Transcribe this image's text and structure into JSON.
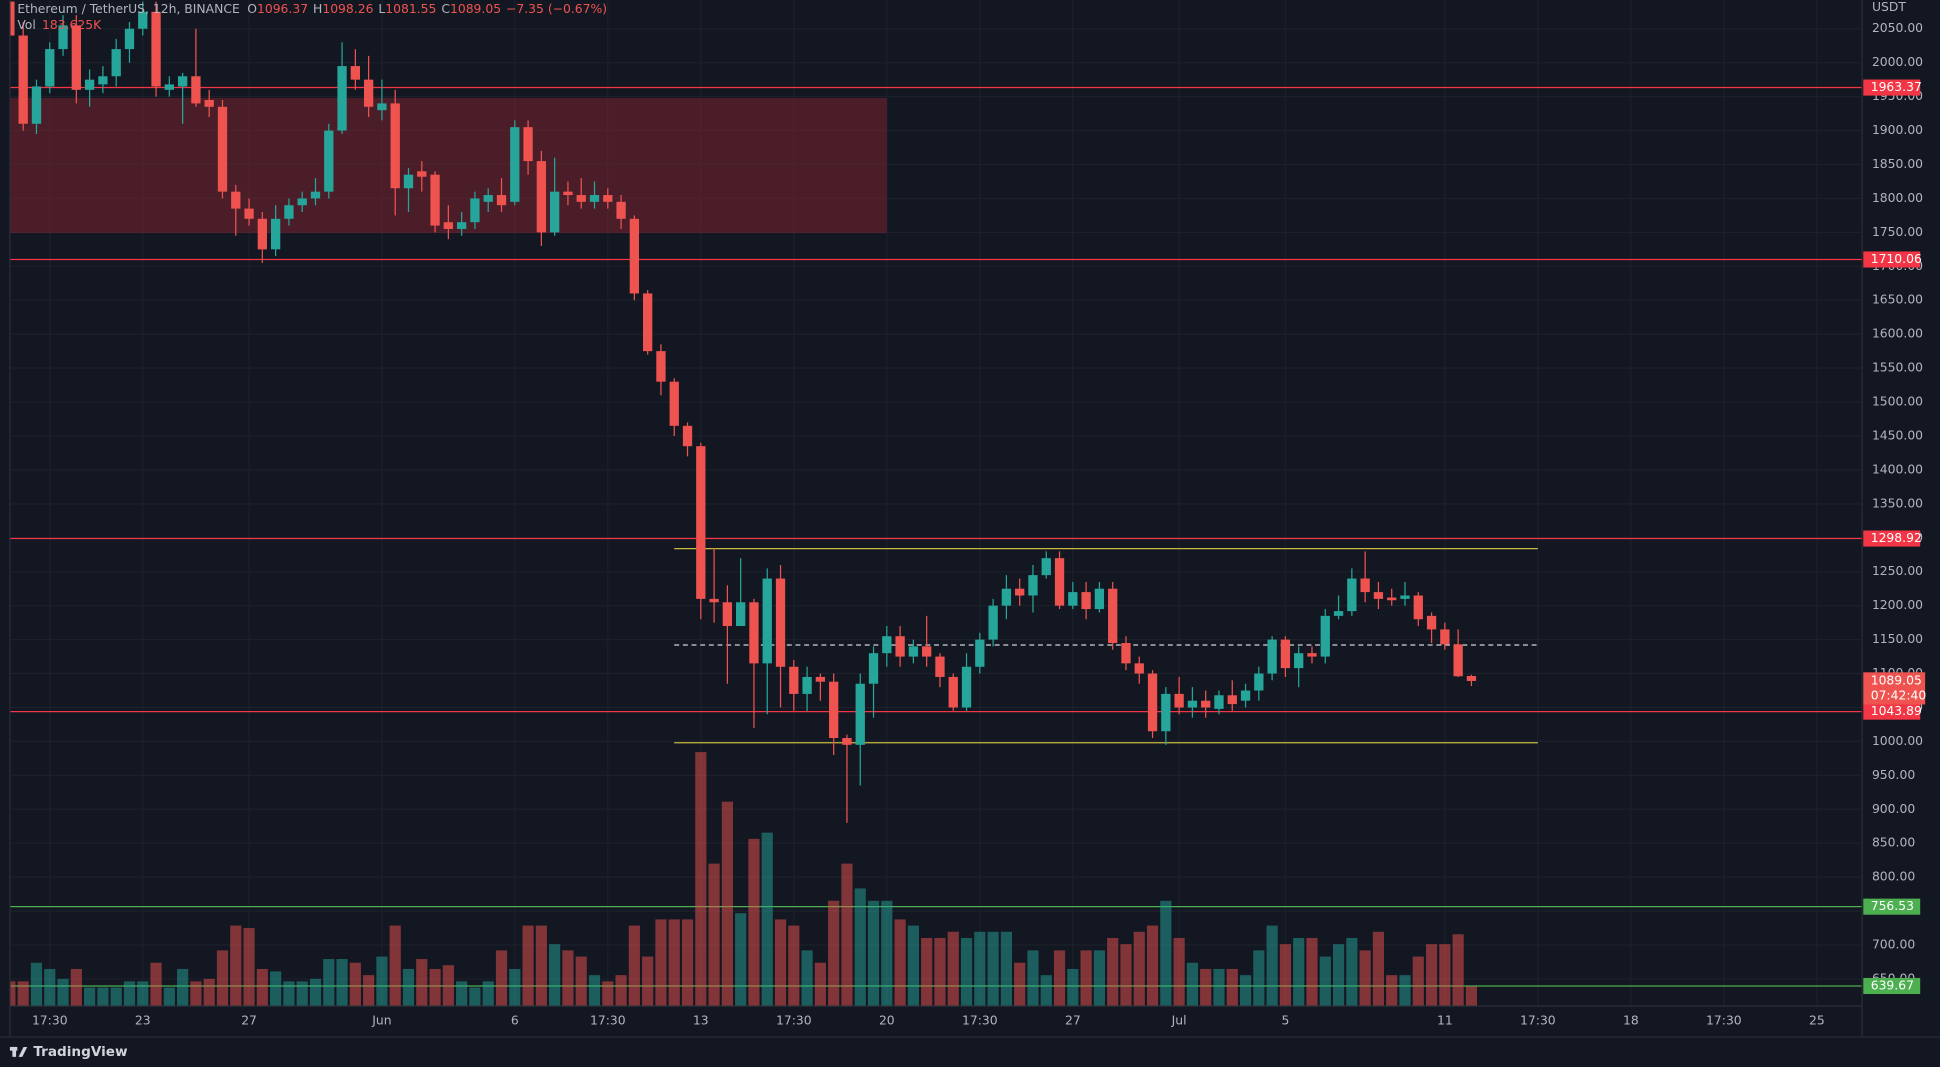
{
  "header": {
    "symbol": "Ethereum / TetherUS, 12h, BINANCE",
    "ohlc_letters": [
      "O",
      "H",
      "L",
      "C"
    ],
    "change": "−7.35 (−0.67%)",
    "volume_title": "Vol",
    "volume_value": "183.625K",
    "currency": "USDT",
    "countdown": "07:42:40"
  },
  "footer": {
    "brand": "TradingView"
  },
  "chart_data": {
    "type": "candlestick",
    "up_color": "#26a69a",
    "down_color": "#ef5350",
    "grid": true,
    "xlim": [
      0,
      139.4
    ],
    "ylim": [
      610,
      2092
    ],
    "volume_ylim": [
      0,
      2400000
    ],
    "xticks": [
      {
        "value": 3,
        "label": "17:30"
      },
      {
        "value": 10,
        "label": "23"
      },
      {
        "value": 18,
        "label": "27"
      },
      {
        "value": 28,
        "label": "Jun"
      },
      {
        "value": 38,
        "label": "6"
      },
      {
        "value": 45,
        "label": "17:30"
      },
      {
        "value": 52,
        "label": "13"
      },
      {
        "value": 59,
        "label": "17:30"
      },
      {
        "value": 66,
        "label": "20"
      },
      {
        "value": 73,
        "label": "17:30"
      },
      {
        "value": 80,
        "label": "27"
      },
      {
        "value": 88,
        "label": "Jul"
      },
      {
        "value": 96,
        "label": "5"
      },
      {
        "value": 108,
        "label": "11"
      },
      {
        "value": 115,
        "label": "17:30"
      },
      {
        "value": 122,
        "label": "18"
      },
      {
        "value": 129,
        "label": "17:30"
      },
      {
        "value": 136,
        "label": "25"
      }
    ],
    "yticks": [
      {
        "value": 650,
        "label": "650.00"
      },
      {
        "value": 700,
        "label": "700.00"
      },
      {
        "value": 750,
        "label": "750.00"
      },
      {
        "value": 800,
        "label": "800.00"
      },
      {
        "value": 850,
        "label": "850.00"
      },
      {
        "value": 900,
        "label": "900.00"
      },
      {
        "value": 950,
        "label": "950.00"
      },
      {
        "value": 1000,
        "label": "1000.00"
      },
      {
        "value": 1050,
        "label": "1050.00"
      },
      {
        "value": 1100,
        "label": "1100.00"
      },
      {
        "value": 1150,
        "label": "1150.00"
      },
      {
        "value": 1200,
        "label": "1200.00"
      },
      {
        "value": 1250,
        "label": "1250.00"
      },
      {
        "value": 1300,
        "label": "1300.00"
      },
      {
        "value": 1350,
        "label": "1350.00"
      },
      {
        "value": 1400,
        "label": "1400.00"
      },
      {
        "value": 1450,
        "label": "1450.00"
      },
      {
        "value": 1500,
        "label": "1500.00"
      },
      {
        "value": 1550,
        "label": "1550.00"
      },
      {
        "value": 1600,
        "label": "1600.00"
      },
      {
        "value": 1650,
        "label": "1650.00"
      },
      {
        "value": 1700,
        "label": "1700.00"
      },
      {
        "value": 1750,
        "label": "1750.00"
      },
      {
        "value": 1800,
        "label": "1800.00"
      },
      {
        "value": 1850,
        "label": "1850.00"
      },
      {
        "value": 1900,
        "label": "1900.00"
      },
      {
        "value": 1950,
        "label": "1950.00"
      },
      {
        "value": 2000,
        "label": "2000.00"
      },
      {
        "value": 2050,
        "label": "2050.00"
      }
    ],
    "open": [
      2090,
      2040,
      1910,
      1965,
      2020,
      2055,
      1960,
      1968,
      1980,
      2020,
      2050,
      2075,
      1960,
      1965,
      1980,
      1945,
      1935,
      1810,
      1785,
      1770,
      1725,
      1770,
      1790,
      1800,
      1810,
      1900,
      1995,
      1975,
      1930,
      1940,
      1815,
      1840,
      1835,
      1765,
      1755,
      1765,
      1795,
      1805,
      1795,
      1905,
      1855,
      1750,
      1810,
      1805,
      1795,
      1805,
      1795,
      1770,
      1660,
      1575,
      1530,
      1465,
      1435,
      1210,
      1205,
      1170,
      1205,
      1115,
      1240,
      1110,
      1070,
      1095,
      1088,
      1005,
      995,
      1085,
      1130,
      1155,
      1125,
      1140,
      1125,
      1095,
      1050,
      1110,
      1150,
      1200,
      1225,
      1215,
      1245,
      1270,
      1200,
      1220,
      1195,
      1225,
      1145,
      1115,
      1100,
      1015,
      1070,
      1050,
      1060,
      1048,
      1068,
      1060,
      1075,
      1100,
      1150,
      1108,
      1130,
      1125,
      1185,
      1192,
      1240,
      1220,
      1212,
      1210,
      1215,
      1185,
      1165,
      1143,
      1096.37
    ],
    "high": [
      2095,
      2060,
      1975,
      2030,
      2070,
      2070,
      1990,
      1995,
      2035,
      2060,
      2090,
      2090,
      1980,
      1985,
      2050,
      1960,
      1945,
      1820,
      1800,
      1780,
      1790,
      1800,
      1810,
      1830,
      1910,
      2030,
      2020,
      2010,
      1975,
      1960,
      1845,
      1855,
      1840,
      1790,
      1780,
      1810,
      1815,
      1830,
      1915,
      1915,
      1870,
      1860,
      1825,
      1830,
      1825,
      1815,
      1805,
      1775,
      1665,
      1585,
      1535,
      1470,
      1440,
      1285,
      1230,
      1270,
      1210,
      1255,
      1260,
      1120,
      1110,
      1100,
      1100,
      1010,
      1100,
      1140,
      1170,
      1170,
      1150,
      1185,
      1130,
      1100,
      1130,
      1160,
      1210,
      1245,
      1240,
      1260,
      1280,
      1280,
      1235,
      1235,
      1235,
      1235,
      1155,
      1125,
      1105,
      1080,
      1095,
      1080,
      1075,
      1075,
      1090,
      1085,
      1110,
      1155,
      1155,
      1140,
      1140,
      1195,
      1215,
      1255,
      1280,
      1235,
      1225,
      1235,
      1220,
      1190,
      1175,
      1165,
      1098.26
    ],
    "low": [
      2030,
      1900,
      1895,
      1955,
      2010,
      1940,
      1935,
      1955,
      1965,
      2000,
      2040,
      1950,
      1950,
      1910,
      1935,
      1920,
      1800,
      1745,
      1760,
      1705,
      1715,
      1760,
      1780,
      1790,
      1800,
      1895,
      1960,
      1920,
      1915,
      1775,
      1780,
      1810,
      1750,
      1740,
      1745,
      1755,
      1780,
      1780,
      1790,
      1835,
      1730,
      1745,
      1790,
      1785,
      1785,
      1785,
      1755,
      1650,
      1570,
      1510,
      1450,
      1420,
      1180,
      1175,
      1085,
      1170,
      1020,
      1040,
      1050,
      1045,
      1045,
      1060,
      980,
      880,
      935,
      1035,
      1110,
      1110,
      1115,
      1110,
      1080,
      1045,
      1045,
      1100,
      1140,
      1180,
      1200,
      1190,
      1240,
      1195,
      1195,
      1180,
      1190,
      1135,
      1105,
      1085,
      1005,
      995,
      1040,
      1035,
      1035,
      1040,
      1045,
      1050,
      1060,
      1090,
      1095,
      1080,
      1115,
      1115,
      1180,
      1185,
      1205,
      1195,
      1200,
      1200,
      1170,
      1145,
      1135,
      1095,
      1081.55
    ],
    "close": [
      2040,
      1910,
      1965,
      2020,
      2055,
      1960,
      1975,
      1980,
      2020,
      2050,
      2075,
      1965,
      1968,
      1980,
      1940,
      1935,
      1810,
      1785,
      1770,
      1725,
      1770,
      1790,
      1800,
      1810,
      1900,
      1995,
      1975,
      1935,
      1940,
      1815,
      1835,
      1832,
      1760,
      1755,
      1765,
      1800,
      1805,
      1790,
      1905,
      1855,
      1750,
      1810,
      1805,
      1795,
      1805,
      1795,
      1770,
      1660,
      1575,
      1530,
      1465,
      1435,
      1210,
      1205,
      1170,
      1205,
      1115,
      1240,
      1110,
      1070,
      1095,
      1088,
      1005,
      995,
      1085,
      1130,
      1155,
      1125,
      1140,
      1125,
      1095,
      1050,
      1110,
      1150,
      1200,
      1225,
      1215,
      1245,
      1270,
      1200,
      1220,
      1195,
      1225,
      1145,
      1115,
      1100,
      1015,
      1070,
      1050,
      1060,
      1050,
      1068,
      1055,
      1075,
      1100,
      1150,
      1108,
      1130,
      1125,
      1185,
      1192,
      1240,
      1220,
      1210,
      1208,
      1215,
      1180,
      1165,
      1143,
      1096,
      1089.05
    ],
    "volume": [
      230000,
      230000,
      402500,
      345000,
      253000,
      345000,
      172500,
      172500,
      172500,
      230000,
      230000,
      402500,
      172500,
      345000,
      230000,
      253000,
      517500,
      747500,
      724500,
      345000,
      322000,
      230000,
      230000,
      253000,
      437000,
      437000,
      402500,
      287500,
      460000,
      747500,
      345000,
      437000,
      345000,
      379500,
      230000,
      172500,
      230000,
      517500,
      345000,
      747500,
      747500,
      575000,
      517500,
      460000,
      287500,
      230000,
      287500,
      747500,
      460000,
      805000,
      805000,
      805000,
      2357500,
      1322500,
      1897500,
      862500,
      1552500,
      1610000,
      805000,
      747500,
      517500,
      402500,
      977500,
      1322500,
      1092500,
      977500,
      977500,
      805000,
      747500,
      632500,
      632500,
      690000,
      632500,
      690000,
      690000,
      690000,
      402500,
      517500,
      287500,
      517500,
      345000,
      517500,
      517500,
      632500,
      575000,
      690000,
      747500,
      977500,
      632500,
      402500,
      345000,
      345000,
      345000,
      287500,
      517500,
      747500,
      575000,
      632500,
      632500,
      460000,
      575000,
      632500,
      517500,
      690000,
      287500,
      287500,
      460000,
      575000,
      575000,
      667000,
      183625
    ],
    "zones": [
      {
        "from": 0,
        "to": 66,
        "low": 1749,
        "high": 1948,
        "color": "rgba(178,40,51,0.35)"
      }
    ],
    "range_lines": [
      {
        "value": 1284,
        "from": 50,
        "to": 115,
        "color": "#c9b93f",
        "style": "solid"
      },
      {
        "value": 998,
        "from": 50,
        "to": 115,
        "color": "#c9b93f",
        "style": "solid"
      },
      {
        "value": 1142,
        "from": 50,
        "to": 115,
        "color": "#d1d4dc",
        "style": "dashed"
      }
    ],
    "levels": [
      {
        "value": 1963.37,
        "color": "#f23645"
      },
      {
        "value": 1710.06,
        "color": "#f23645"
      },
      {
        "value": 1298.92,
        "color": "#f23645"
      },
      {
        "value": 1043.89,
        "color": "#f23645"
      },
      {
        "value": 756.53,
        "color": "#4caf50"
      },
      {
        "value": 639.67,
        "color": "#4caf50"
      }
    ]
  }
}
